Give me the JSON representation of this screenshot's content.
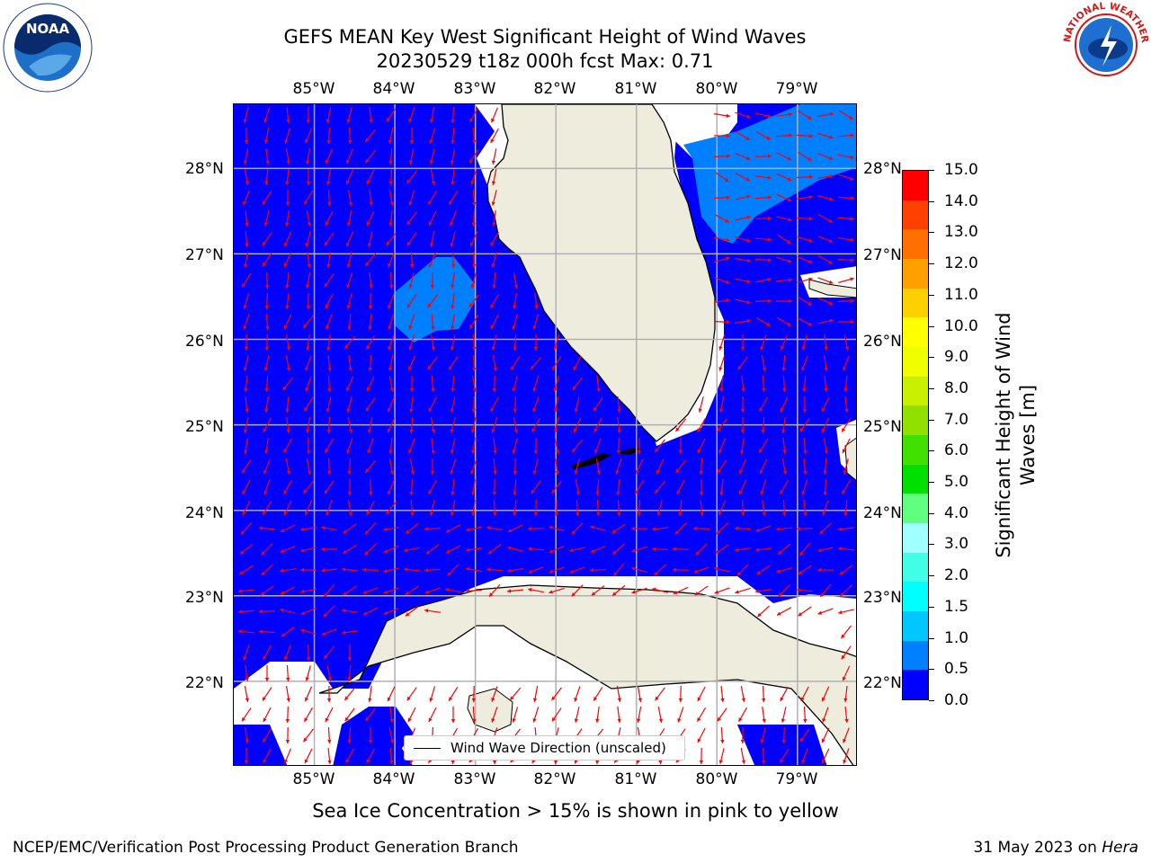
{
  "title": {
    "line1": "GEFS MEAN Key West Significant Height of Wind Waves",
    "line2": "20230529 t18z 000h fcst   Max: 0.71"
  },
  "axes": {
    "lon_ticks": [
      "85°W",
      "84°W",
      "83°W",
      "82°W",
      "81°W",
      "80°W",
      "79°W"
    ],
    "lat_ticks": [
      "28°N",
      "27°N",
      "26°N",
      "25°N",
      "24°N",
      "23°N",
      "22°N"
    ],
    "lon_range": [
      -86.0,
      -78.25
    ],
    "lat_range": [
      21.0,
      28.75
    ]
  },
  "legend": {
    "label": "Wind Wave Direction (unscaled)"
  },
  "colorbar": {
    "label": "Significant Height of Wind Waves [m]",
    "tick_labels": [
      "0.0",
      "0.5",
      "1.0",
      "1.5",
      "2.0",
      "3.0",
      "4.0",
      "5.0",
      "6.0",
      "7.0",
      "8.0",
      "9.0",
      "10.0",
      "11.0",
      "12.0",
      "13.0",
      "14.0",
      "15.0"
    ],
    "colors": [
      "#0000ff",
      "#0080ff",
      "#00c8ff",
      "#00ffff",
      "#40ffe6",
      "#a0ffff",
      "#60ff80",
      "#00e000",
      "#40e000",
      "#90e000",
      "#c8f000",
      "#f0ff00",
      "#ffff00",
      "#ffd000",
      "#ffa000",
      "#ff7000",
      "#ff4000",
      "#ff0000"
    ]
  },
  "colors": {
    "ocean_low": "#0000ff",
    "ocean_mid": "#0080ff",
    "land": "#eeeddd",
    "arrow": "#ff0000",
    "grid": "#b0b0b0"
  },
  "subtitle": "Sea Ice Concentration > 15% is shown in pink to yellow",
  "footer": {
    "left": "NCEP/EMC/Verification Post Processing Product Generation Branch",
    "right_date": "31 May 2023 on ",
    "right_host": "Hera"
  },
  "logos": {
    "noaa_text": "NOAA",
    "nws_text": "NATIONAL WEATHER SERVICE"
  },
  "chart_data": {
    "type": "heatmap",
    "title": "GEFS MEAN Key West Significant Height of Wind Waves",
    "variable": "Significant Height of Wind Waves [m]",
    "max_value": 0.71,
    "color_range": [
      0.0,
      15.0
    ],
    "field_regions": [
      {
        "level": "0.0-0.5",
        "description": "most of open water in domain"
      },
      {
        "level": "0.5-1.0",
        "description": "Atlantic off NE Florida coast (~80°W-78.3°W, 27°N-28.7°N)"
      },
      {
        "level": "0.5-1.0",
        "description": "Gulf of Mexico patch (~84.3°W-83°W, 26°N-27°N)"
      }
    ],
    "arrows": "wind wave direction (unscaled)",
    "projection": "PlateCarree",
    "grid": true
  }
}
